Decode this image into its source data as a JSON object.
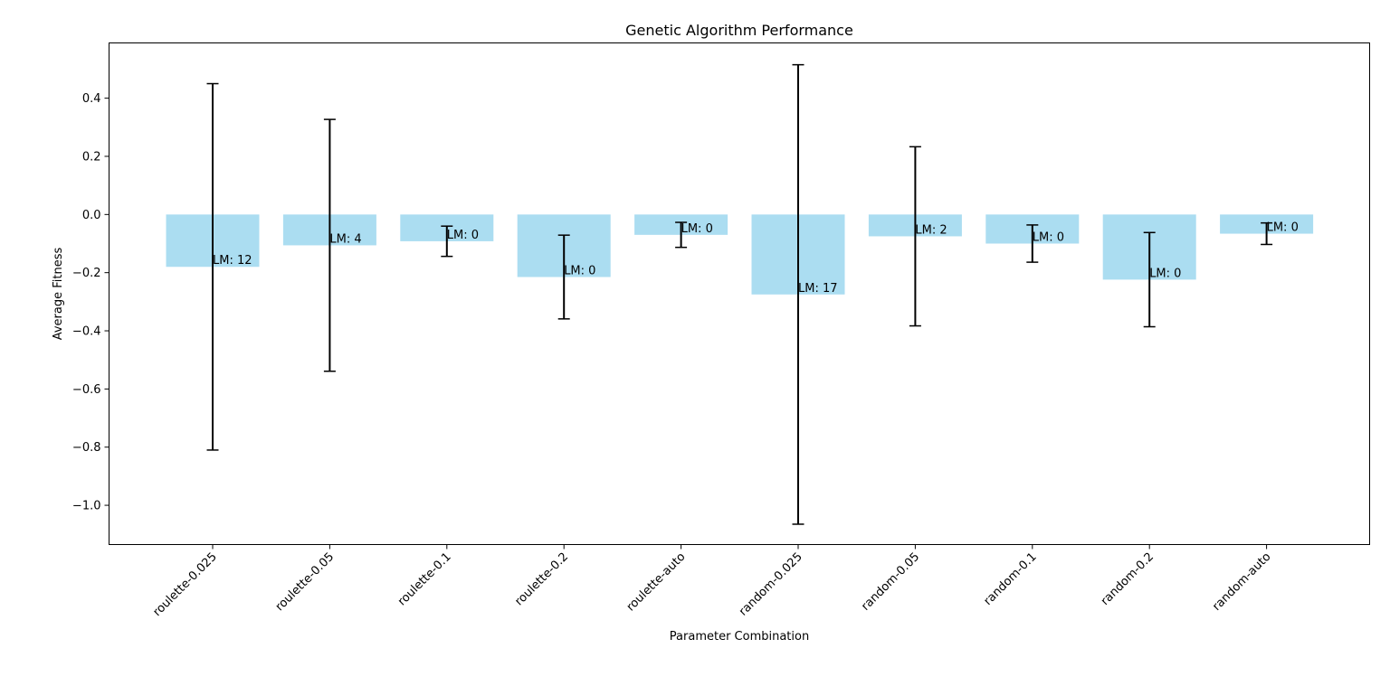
{
  "chart_data": {
    "type": "bar",
    "title": "Genetic Algorithm Performance",
    "xlabel": "Parameter Combination",
    "ylabel": "Average Fitness",
    "ylim": [
      -1.135,
      0.59
    ],
    "yticks": [
      0.4,
      0.2,
      0.0,
      -0.2,
      -0.4,
      -0.6,
      -0.8,
      -1.0
    ],
    "ytick_labels": [
      "0.4",
      "0.2",
      "0.0",
      "−0.2",
      "−0.4",
      "−0.6",
      "−0.8",
      "−1.0"
    ],
    "categories": [
      "roulette-0.025",
      "roulette-0.05",
      "roulette-0.1",
      "roulette-0.2",
      "roulette-auto",
      "random-0.025",
      "random-0.05",
      "random-0.1",
      "random-0.2",
      "random-auto"
    ],
    "values": [
      -0.18,
      -0.106,
      -0.092,
      -0.215,
      -0.07,
      -0.275,
      -0.075,
      -0.1,
      -0.224,
      -0.066
    ],
    "errors": [
      0.63,
      0.433,
      0.052,
      0.144,
      0.043,
      0.79,
      0.308,
      0.064,
      0.162,
      0.037
    ],
    "bar_labels": [
      "LM: 12",
      "LM: 4",
      "LM: 0",
      "LM: 0",
      "LM: 0",
      "LM: 17",
      "LM: 2",
      "LM: 0",
      "LM: 0",
      "LM: 0"
    ],
    "bar_color": "#87ceeb",
    "bar_opacity": 0.7,
    "grid": false,
    "legend": "none"
  }
}
